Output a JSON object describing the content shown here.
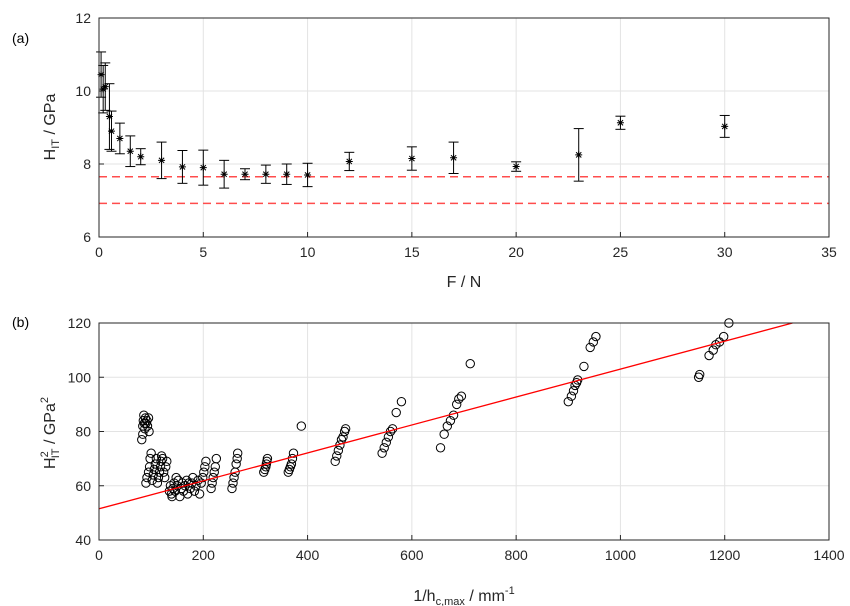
{
  "chart_data": [
    {
      "type": "scatter",
      "panel_label": "(a)",
      "xlabel": "F / N",
      "ylabel": {
        "main": "H",
        "sub": "IT",
        "rest": " / GPa"
      },
      "xlim": [
        0,
        35
      ],
      "ylim": [
        6,
        12
      ],
      "xticks": [
        0,
        5,
        10,
        15,
        20,
        25,
        30,
        35
      ],
      "yticks": [
        6,
        8,
        10,
        12
      ],
      "grid": true,
      "marker": "asterisk",
      "marker_color": "#000000",
      "errorbars": true,
      "points": [
        {
          "x": 0.1,
          "y": 10.45,
          "err": 0.62
        },
        {
          "x": 0.2,
          "y": 10.05,
          "err": 0.65
        },
        {
          "x": 0.3,
          "y": 10.12,
          "err": 0.65
        },
        {
          "x": 0.5,
          "y": 9.3,
          "err": 0.9
        },
        {
          "x": 0.6,
          "y": 8.9,
          "err": 0.55
        },
        {
          "x": 1.0,
          "y": 8.7,
          "err": 0.42
        },
        {
          "x": 1.5,
          "y": 8.35,
          "err": 0.42
        },
        {
          "x": 2.0,
          "y": 8.2,
          "err": 0.22
        },
        {
          "x": 3.0,
          "y": 8.1,
          "err": 0.5
        },
        {
          "x": 4.0,
          "y": 7.92,
          "err": 0.45
        },
        {
          "x": 5.0,
          "y": 7.9,
          "err": 0.48
        },
        {
          "x": 6.0,
          "y": 7.72,
          "err": 0.38
        },
        {
          "x": 7.0,
          "y": 7.72,
          "err": 0.15
        },
        {
          "x": 8.0,
          "y": 7.72,
          "err": 0.25
        },
        {
          "x": 9.0,
          "y": 7.72,
          "err": 0.28
        },
        {
          "x": 10.0,
          "y": 7.7,
          "err": 0.32
        },
        {
          "x": 12.0,
          "y": 8.07,
          "err": 0.25
        },
        {
          "x": 15.0,
          "y": 8.15,
          "err": 0.32
        },
        {
          "x": 17.0,
          "y": 8.17,
          "err": 0.43
        },
        {
          "x": 20.0,
          "y": 7.93,
          "err": 0.13
        },
        {
          "x": 23.0,
          "y": 8.25,
          "err": 0.72
        },
        {
          "x": 25.0,
          "y": 9.13,
          "err": 0.18
        },
        {
          "x": 30.0,
          "y": 9.03,
          "err": 0.3
        }
      ],
      "reference_lines": [
        {
          "y": 7.65,
          "style": "dashed",
          "color": "#ff4d4d"
        },
        {
          "y": 6.92,
          "style": "dashed",
          "color": "#ff4d4d"
        }
      ]
    },
    {
      "type": "scatter",
      "panel_label": "(b)",
      "xlabel": {
        "main": "1/h",
        "sub": "c,max",
        "rest": " / mm",
        "sup": "-1"
      },
      "ylabel": {
        "main": "H",
        "sup": "2",
        "sub": "IT",
        "rest": " / GPa",
        "sup2": "2"
      },
      "xlim": [
        0,
        1400
      ],
      "ylim": [
        40,
        120
      ],
      "xticks": [
        0,
        200,
        400,
        600,
        800,
        1000,
        1200,
        1400
      ],
      "yticks": [
        40,
        60,
        80,
        100,
        120
      ],
      "grid": true,
      "marker": "open-circle",
      "marker_color": "#000000",
      "fit_line": {
        "x": [
          0,
          1330
        ],
        "y": [
          51.5,
          120
        ],
        "color": "#ff0000"
      },
      "points": [
        {
          "x": 82,
          "y": 77
        },
        {
          "x": 84,
          "y": 79
        },
        {
          "x": 84,
          "y": 82
        },
        {
          "x": 85,
          "y": 84
        },
        {
          "x": 86,
          "y": 86
        },
        {
          "x": 87,
          "y": 83
        },
        {
          "x": 88,
          "y": 81
        },
        {
          "x": 89,
          "y": 85
        },
        {
          "x": 90,
          "y": 83
        },
        {
          "x": 92,
          "y": 84
        },
        {
          "x": 93,
          "y": 82
        },
        {
          "x": 95,
          "y": 85
        },
        {
          "x": 96,
          "y": 80
        },
        {
          "x": 90,
          "y": 61
        },
        {
          "x": 92,
          "y": 63
        },
        {
          "x": 95,
          "y": 65
        },
        {
          "x": 97,
          "y": 67
        },
        {
          "x": 98,
          "y": 70
        },
        {
          "x": 100,
          "y": 72
        },
        {
          "x": 102,
          "y": 62
        },
        {
          "x": 104,
          "y": 64
        },
        {
          "x": 106,
          "y": 66
        },
        {
          "x": 108,
          "y": 68
        },
        {
          "x": 110,
          "y": 70
        },
        {
          "x": 112,
          "y": 61
        },
        {
          "x": 114,
          "y": 63
        },
        {
          "x": 116,
          "y": 65
        },
        {
          "x": 118,
          "y": 67
        },
        {
          "x": 119,
          "y": 69
        },
        {
          "x": 120,
          "y": 71
        },
        {
          "x": 122,
          "y": 70
        },
        {
          "x": 124,
          "y": 65
        },
        {
          "x": 126,
          "y": 63
        },
        {
          "x": 128,
          "y": 67
        },
        {
          "x": 130,
          "y": 69
        },
        {
          "x": 135,
          "y": 58
        },
        {
          "x": 137,
          "y": 60
        },
        {
          "x": 139,
          "y": 57
        },
        {
          "x": 140,
          "y": 56
        },
        {
          "x": 142,
          "y": 59
        },
        {
          "x": 144,
          "y": 61
        },
        {
          "x": 146,
          "y": 58
        },
        {
          "x": 148,
          "y": 63
        },
        {
          "x": 150,
          "y": 60
        },
        {
          "x": 152,
          "y": 62
        },
        {
          "x": 155,
          "y": 56
        },
        {
          "x": 158,
          "y": 59
        },
        {
          "x": 160,
          "y": 61
        },
        {
          "x": 162,
          "y": 58
        },
        {
          "x": 165,
          "y": 60
        },
        {
          "x": 168,
          "y": 62
        },
        {
          "x": 170,
          "y": 57
        },
        {
          "x": 172,
          "y": 61
        },
        {
          "x": 175,
          "y": 59
        },
        {
          "x": 178,
          "y": 61
        },
        {
          "x": 180,
          "y": 63
        },
        {
          "x": 183,
          "y": 58
        },
        {
          "x": 186,
          "y": 60
        },
        {
          "x": 190,
          "y": 62
        },
        {
          "x": 193,
          "y": 57
        },
        {
          "x": 196,
          "y": 61
        },
        {
          "x": 199,
          "y": 63
        },
        {
          "x": 201,
          "y": 65
        },
        {
          "x": 203,
          "y": 67
        },
        {
          "x": 205,
          "y": 69
        },
        {
          "x": 215,
          "y": 59
        },
        {
          "x": 217,
          "y": 61
        },
        {
          "x": 219,
          "y": 63
        },
        {
          "x": 221,
          "y": 65
        },
        {
          "x": 223,
          "y": 67
        },
        {
          "x": 225,
          "y": 70
        },
        {
          "x": 255,
          "y": 59
        },
        {
          "x": 257,
          "y": 61
        },
        {
          "x": 259,
          "y": 63
        },
        {
          "x": 261,
          "y": 65
        },
        {
          "x": 263,
          "y": 68
        },
        {
          "x": 265,
          "y": 70
        },
        {
          "x": 266,
          "y": 72
        },
        {
          "x": 316,
          "y": 65
        },
        {
          "x": 318,
          "y": 66
        },
        {
          "x": 320,
          "y": 67
        },
        {
          "x": 321,
          "y": 68
        },
        {
          "x": 322,
          "y": 69
        },
        {
          "x": 323,
          "y": 70
        },
        {
          "x": 363,
          "y": 65
        },
        {
          "x": 365,
          "y": 66
        },
        {
          "x": 367,
          "y": 67
        },
        {
          "x": 369,
          "y": 68
        },
        {
          "x": 371,
          "y": 70
        },
        {
          "x": 373,
          "y": 72
        },
        {
          "x": 388,
          "y": 82
        },
        {
          "x": 453,
          "y": 69
        },
        {
          "x": 456,
          "y": 71
        },
        {
          "x": 459,
          "y": 73
        },
        {
          "x": 462,
          "y": 75
        },
        {
          "x": 465,
          "y": 77
        },
        {
          "x": 468,
          "y": 78
        },
        {
          "x": 471,
          "y": 80
        },
        {
          "x": 473,
          "y": 81
        },
        {
          "x": 543,
          "y": 72
        },
        {
          "x": 547,
          "y": 74
        },
        {
          "x": 551,
          "y": 76
        },
        {
          "x": 555,
          "y": 78
        },
        {
          "x": 559,
          "y": 80
        },
        {
          "x": 563,
          "y": 81
        },
        {
          "x": 570,
          "y": 87
        },
        {
          "x": 580,
          "y": 91
        },
        {
          "x": 655,
          "y": 74
        },
        {
          "x": 662,
          "y": 79
        },
        {
          "x": 668,
          "y": 82
        },
        {
          "x": 674,
          "y": 84
        },
        {
          "x": 680,
          "y": 86
        },
        {
          "x": 686,
          "y": 90
        },
        {
          "x": 690,
          "y": 92
        },
        {
          "x": 695,
          "y": 93
        },
        {
          "x": 712,
          "y": 105
        },
        {
          "x": 900,
          "y": 91
        },
        {
          "x": 906,
          "y": 93
        },
        {
          "x": 910,
          "y": 95
        },
        {
          "x": 913,
          "y": 97
        },
        {
          "x": 916,
          "y": 98
        },
        {
          "x": 918,
          "y": 99
        },
        {
          "x": 930,
          "y": 104
        },
        {
          "x": 942,
          "y": 111
        },
        {
          "x": 948,
          "y": 113
        },
        {
          "x": 953,
          "y": 115
        },
        {
          "x": 1150,
          "y": 100
        },
        {
          "x": 1152,
          "y": 101
        },
        {
          "x": 1170,
          "y": 108
        },
        {
          "x": 1178,
          "y": 110
        },
        {
          "x": 1183,
          "y": 112
        },
        {
          "x": 1190,
          "y": 113
        },
        {
          "x": 1198,
          "y": 115
        },
        {
          "x": 1208,
          "y": 120
        }
      ]
    }
  ]
}
